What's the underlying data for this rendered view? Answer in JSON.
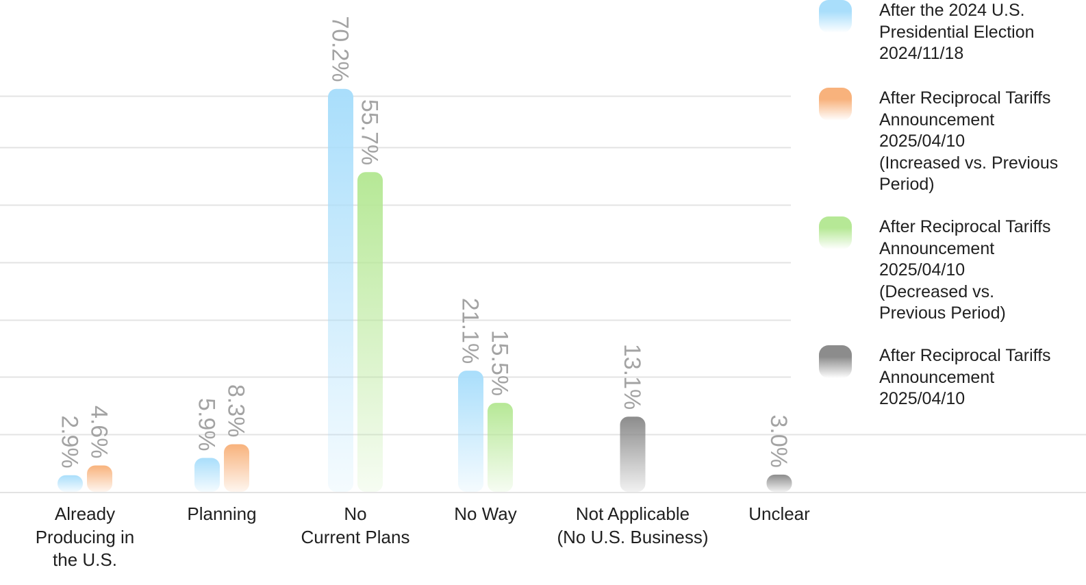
{
  "chart_data": {
    "type": "bar",
    "categories": [
      "Already\nProducing in\nthe U.S.",
      "Planning",
      "No\nCurrent Plans",
      "No Way",
      "Not Applicable\n(No U.S. Business)",
      "Unclear"
    ],
    "series": [
      {
        "name": "After the 2024 U.S.\nPresidential Election\n2024/11/18",
        "color": "#a9defb",
        "values": [
          2.9,
          5.9,
          70.2,
          21.1,
          null,
          null
        ]
      },
      {
        "name": "After Reciprocal Tariffs\nAnnouncement\n2025/04/10\n(Increased vs. Previous\nPeriod)",
        "color": "#f8b27c",
        "values": [
          4.6,
          8.3,
          null,
          null,
          null,
          null
        ]
      },
      {
        "name": "After Reciprocal Tariffs\nAnnouncement\n2025/04/10\n(Decreased vs.\nPrevious Period)",
        "color": "#b6e896",
        "values": [
          null,
          null,
          55.7,
          15.5,
          null,
          null
        ]
      },
      {
        "name": "After Reciprocal Tariffs\nAnnouncement\n2025/04/10",
        "color": "#8c8c8c",
        "values": [
          null,
          null,
          null,
          null,
          13.1,
          3.0
        ]
      }
    ],
    "data_labels": [
      "2.9%",
      "4.6%",
      "5.9%",
      "8.3%",
      "70.2%",
      "55.7%",
      "21.1%",
      "15.5%",
      "13.1%",
      "3.0%"
    ],
    "ylim": [
      0,
      80
    ],
    "grid": true,
    "legend_position": "right",
    "title": "",
    "xlabel": "",
    "ylabel": ""
  }
}
